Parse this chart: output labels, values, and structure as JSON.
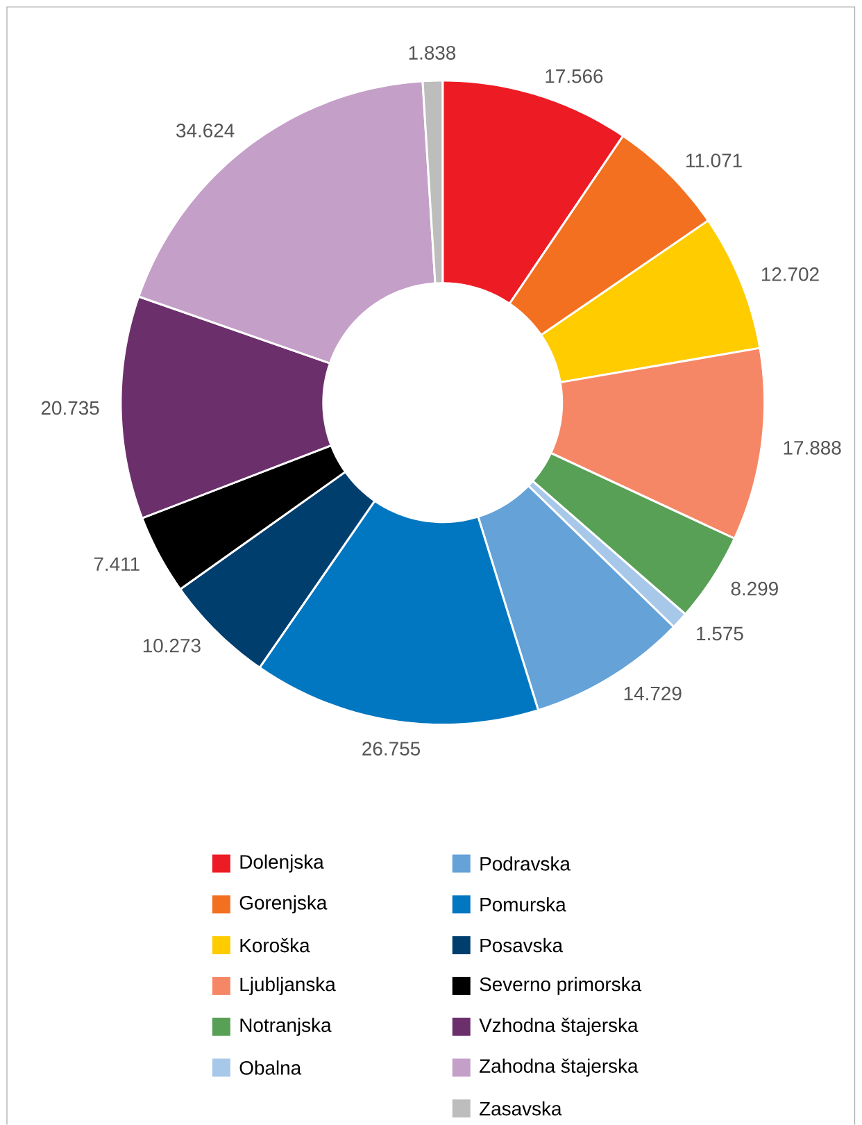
{
  "chart_data": {
    "type": "donut",
    "categories": [
      "Dolenjska",
      "Gorenjska",
      "Koroška",
      "Ljubljanska",
      "Notranjska",
      "Obalna",
      "Podravska",
      "Pomurska",
      "Posavska",
      "Severno primorska",
      "Vzhodna štajerska",
      "Zahodna štajerska",
      "Zasavska"
    ],
    "values": [
      17566,
      11071,
      12702,
      17888,
      8299,
      1575,
      14729,
      26755,
      10273,
      7411,
      20735,
      34624,
      1838
    ],
    "value_labels": [
      "17.566",
      "11.071",
      "12.702",
      "17.888",
      "8.299",
      "1.575",
      "14.729",
      "26.755",
      "10.273",
      "7.411",
      "20.735",
      "34.624",
      "1.838"
    ],
    "colors": [
      "#ed1c24",
      "#f37021",
      "#ffcc00",
      "#f58766",
      "#58a055",
      "#a8c8ea",
      "#64a2d8",
      "#0077c0",
      "#003e6e",
      "#000000",
      "#6b2f6b",
      "#c49fc8",
      "#bdbdbd"
    ],
    "legend": "bottom"
  }
}
